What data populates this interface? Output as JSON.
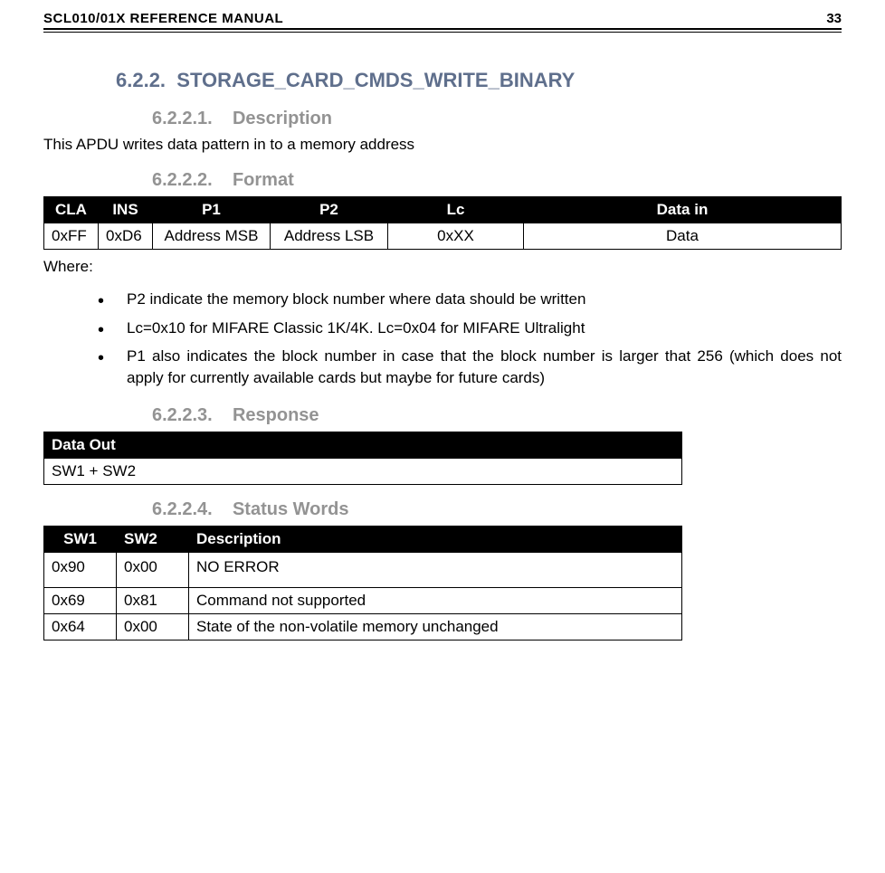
{
  "header": {
    "doc_title": "SCL010/01X REFERENCE MANUAL",
    "page_number": "33"
  },
  "section": {
    "number": "6.2.2.",
    "title": "STORAGE_CARD_CMDS_WRITE_BINARY"
  },
  "sub_desc": {
    "number": "6.2.2.1.",
    "title": "Description",
    "text": "This APDU writes data pattern in to a memory address"
  },
  "sub_format": {
    "number": "6.2.2.2.",
    "title": "Format",
    "columns": [
      "CLA",
      "INS",
      "P1",
      "P2",
      "Lc",
      "Data in"
    ],
    "row": [
      "0xFF",
      "0xD6",
      "Address MSB",
      "Address LSB",
      "0xXX",
      "Data"
    ],
    "where_label": "Where:",
    "bullets": [
      "P2 indicate the memory block number where data should be written",
      "Lc=0x10 for MIFARE Classic 1K/4K. Lc=0x04 for MIFARE Ultralight",
      "P1 also indicates the block number in case that the block number is larger that 256 (which does not apply for currently available cards but maybe for future cards)"
    ]
  },
  "sub_response": {
    "number": "6.2.2.3.",
    "title": "Response",
    "header": "Data Out",
    "row": "SW1 + SW2"
  },
  "sub_status": {
    "number": "6.2.2.4.",
    "title": "Status Words",
    "columns": [
      "SW1",
      "SW2",
      "Description"
    ],
    "rows": [
      [
        "0x90",
        "0x00",
        "NO ERROR"
      ],
      [
        "0x69",
        "0x81",
        "Command not supported"
      ],
      [
        "0x64",
        "0x00",
        "State of the non-volatile memory unchanged"
      ]
    ]
  }
}
